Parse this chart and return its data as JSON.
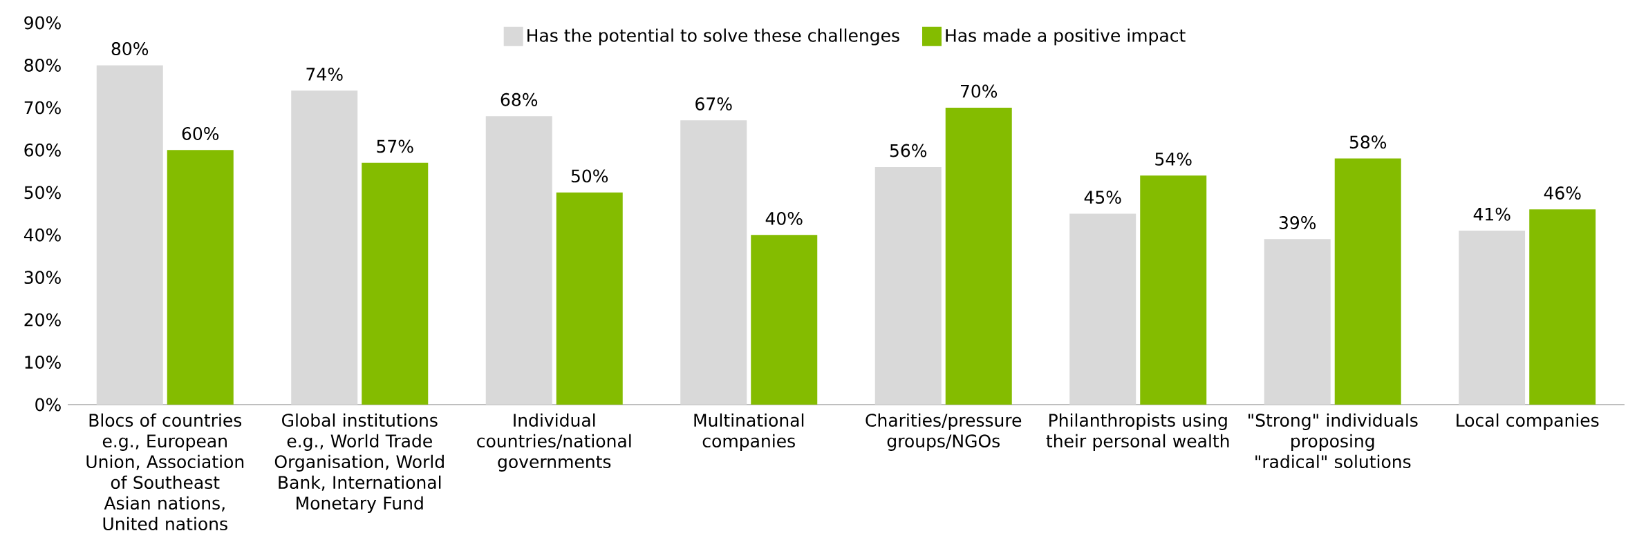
{
  "chart_data": {
    "type": "bar",
    "categories": [
      "Blocs of countries e.g., European Union, Association of Southeast Asian nations, United nations",
      "Global institutions e.g., World Trade Organisation, World Bank, International Monetary Fund",
      "Individual countries/national governments",
      "Multinational companies",
      "Charities/pressure groups/NGOs",
      "Philanthropists using their personal wealth",
      "\"Strong\" individuals proposing \"radical\" solutions",
      "Local companies"
    ],
    "series": [
      {
        "name": "Has the potential to solve these challenges",
        "color": "#d9d9d9",
        "values": [
          80,
          74,
          68,
          67,
          56,
          45,
          39,
          41
        ],
        "value_labels": [
          "80%",
          "74%",
          "68%",
          "67%",
          "56%",
          "45%",
          "39%",
          "41%"
        ]
      },
      {
        "name": "Has made a positive impact",
        "color": "#84bc00",
        "values": [
          60,
          57,
          50,
          40,
          70,
          54,
          58,
          46
        ],
        "value_labels": [
          "60%",
          "57%",
          "50%",
          "40%",
          "70%",
          "54%",
          "58%",
          "46%"
        ]
      }
    ],
    "ylim": [
      0,
      90
    ],
    "yticks": [
      {
        "value": 0,
        "label": "0%"
      },
      {
        "value": 10,
        "label": "10%"
      },
      {
        "value": 20,
        "label": "20%"
      },
      {
        "value": 30,
        "label": "30%"
      },
      {
        "value": 40,
        "label": "40%"
      },
      {
        "value": 50,
        "label": "50%"
      },
      {
        "value": 60,
        "label": "60%"
      },
      {
        "value": 70,
        "label": "70%"
      },
      {
        "value": 80,
        "label": "80%"
      },
      {
        "value": 90,
        "label": "90%"
      }
    ],
    "grid": false,
    "legend": "top"
  }
}
